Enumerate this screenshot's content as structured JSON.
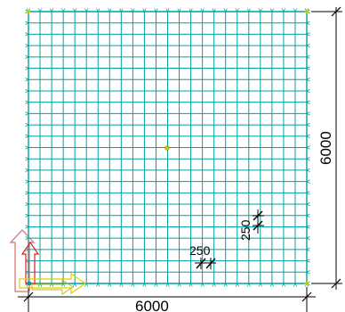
{
  "plate": {
    "width_mm": 6000,
    "height_mm": 6000,
    "mesh_x_mm": 250,
    "mesh_y_mm": 250,
    "grid_color": "#00a0a0",
    "support_color": "#00a0a0",
    "node_color": "#c8c800",
    "center_node": true
  },
  "dimensions": {
    "bottom_label": "6000",
    "right_label": "6000",
    "mesh_x_label": "250",
    "mesh_y_label": "250"
  },
  "axes": {
    "x_color": "#e0d000",
    "y_color": "#e02020",
    "z_color": "#d07070"
  }
}
